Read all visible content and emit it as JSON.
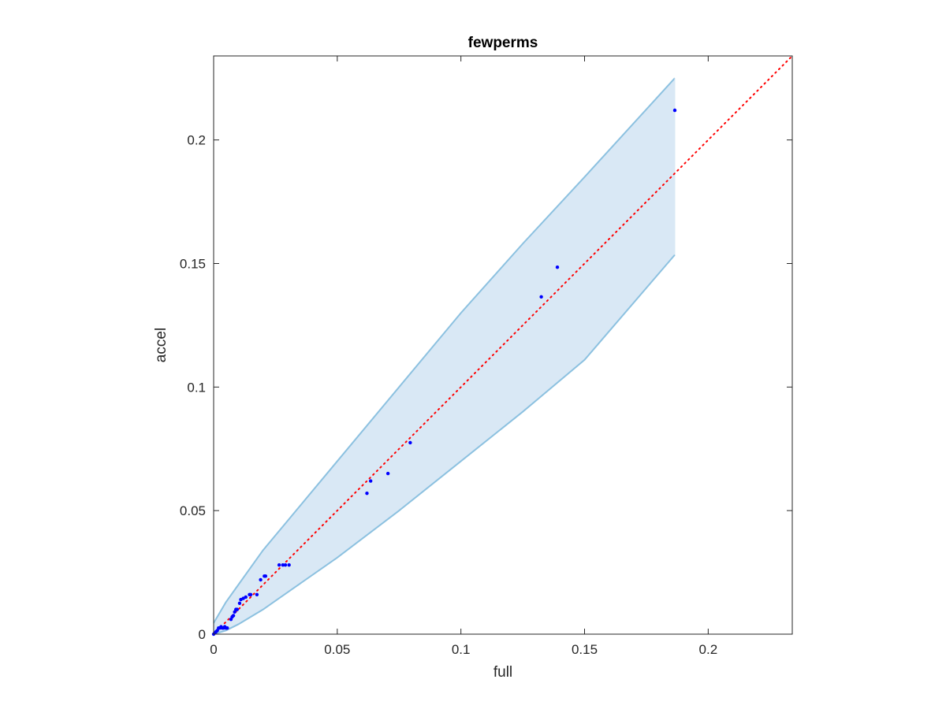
{
  "chart_data": {
    "type": "scatter",
    "title": "fewperms",
    "xlabel": "full",
    "ylabel": "accel",
    "xlim": [
      0,
      0.234
    ],
    "ylim": [
      0,
      0.234
    ],
    "xticks": [
      0,
      0.05,
      0.1,
      0.15,
      0.2
    ],
    "xtick_labels": [
      "0",
      "0.05",
      "0.1",
      "0.15",
      "0.2"
    ],
    "yticks": [
      0,
      0.05,
      0.1,
      0.15,
      0.2
    ],
    "ytick_labels": [
      "0",
      "0.05",
      "0.1",
      "0.15",
      "0.2"
    ],
    "grid": false,
    "colors": {
      "points": "#0000ff",
      "band_fill": "#d9e8f5",
      "band_edge": "#8cc1e0",
      "reference_line": "#ff0000",
      "axes": "#262626"
    },
    "band": {
      "x": [
        0,
        0.005,
        0.01,
        0.02,
        0.03,
        0.05,
        0.075,
        0.1,
        0.125,
        0.15,
        0.1865
      ],
      "upper": [
        0.0045,
        0.013,
        0.02,
        0.034,
        0.046,
        0.07,
        0.1,
        0.13,
        0.158,
        0.185,
        0.225
      ],
      "lower": [
        0,
        0.0015,
        0.004,
        0.01,
        0.017,
        0.031,
        0.05,
        0.07,
        0.09,
        0.111,
        0.1535
      ]
    },
    "reference_line": {
      "x": [
        0,
        0.234
      ],
      "y": [
        0,
        0.234
      ]
    },
    "points": {
      "x": [
        0,
        0.0005,
        0.001,
        0.0015,
        0.002,
        0.0025,
        0.003,
        0.0035,
        0.004,
        0.0045,
        0.005,
        0.0055,
        0.007,
        0.0075,
        0.008,
        0.0085,
        0.009,
        0.0095,
        0.0105,
        0.011,
        0.012,
        0.013,
        0.0145,
        0.015,
        0.0175,
        0.019,
        0.0205,
        0.021,
        0.0265,
        0.028,
        0.029,
        0.0305,
        0.062,
        0.0635,
        0.0705,
        0.0795,
        0.1325,
        0.139,
        0.1865
      ],
      "y": [
        0,
        0.0005,
        0.001,
        0.0015,
        0.0025,
        0.0025,
        0.003,
        0.0025,
        0.0025,
        0.003,
        0.0025,
        0.0025,
        0.006,
        0.007,
        0.0075,
        0.009,
        0.01,
        0.01,
        0.0125,
        0.014,
        0.0145,
        0.015,
        0.016,
        0.016,
        0.016,
        0.022,
        0.0235,
        0.0235,
        0.028,
        0.028,
        0.028,
        0.028,
        0.057,
        0.062,
        0.065,
        0.0775,
        0.1365,
        0.1485,
        0.212
      ]
    }
  }
}
